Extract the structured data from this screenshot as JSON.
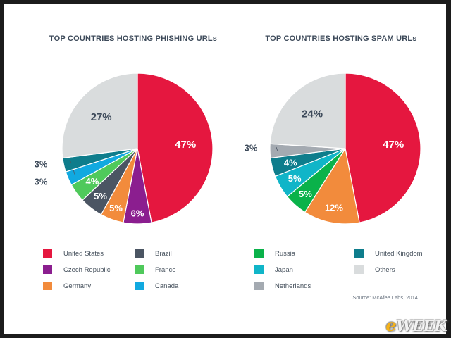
{
  "source_note": "Source: McAfee Labs, 2014.",
  "logo": {
    "prefix": "e",
    "suffix": "WEEK"
  },
  "legend_left": [
    {
      "label": "United States",
      "color": "#e5173f"
    },
    {
      "label": "Brazil",
      "color": "#4b5563"
    },
    {
      "label": "Czech Republic",
      "color": "#8b1e8f"
    },
    {
      "label": "France",
      "color": "#4fc95b"
    },
    {
      "label": "Germany",
      "color": "#f28b3c"
    },
    {
      "label": "Canada",
      "color": "#11a9e0"
    }
  ],
  "legend_right": [
    {
      "label": "Russia",
      "color": "#0ab24a"
    },
    {
      "label": "United Kingdom",
      "color": "#0e7d8c"
    },
    {
      "label": "Japan",
      "color": "#10b5c8"
    },
    {
      "label": "Others",
      "color": "#d9dcdd"
    },
    {
      "label": "Netherlands",
      "color": "#a4aab1"
    }
  ],
  "chart_data": [
    {
      "type": "pie",
      "title": "TOP COUNTRIES HOSTING PHISHING URLs",
      "slices": [
        {
          "label": "United States",
          "value": 47,
          "display": "47%",
          "color": "#e5173f"
        },
        {
          "label": "Czech Republic",
          "value": 6,
          "display": "6%",
          "color": "#8b1e8f"
        },
        {
          "label": "Germany",
          "value": 5,
          "display": "5%",
          "color": "#f28b3c"
        },
        {
          "label": "Brazil",
          "value": 5,
          "display": "5%",
          "color": "#4b5563"
        },
        {
          "label": "France",
          "value": 4,
          "display": "4%",
          "color": "#4fc95b"
        },
        {
          "label": "Canada",
          "value": 3,
          "display": "3%",
          "color": "#11a9e0"
        },
        {
          "label": "United Kingdom",
          "value": 3,
          "display": "3%",
          "color": "#0e7d8c"
        },
        {
          "label": "Others",
          "value": 27,
          "display": "27%",
          "color": "#d9dcdd"
        }
      ]
    },
    {
      "type": "pie",
      "title": "TOP COUNTRIES HOSTING SPAM URLs",
      "slices": [
        {
          "label": "United States",
          "value": 47,
          "display": "47%",
          "color": "#e5173f"
        },
        {
          "label": "Germany",
          "value": 12,
          "display": "12%",
          "color": "#f28b3c"
        },
        {
          "label": "Russia",
          "value": 5,
          "display": "5%",
          "color": "#0ab24a"
        },
        {
          "label": "Japan",
          "value": 5,
          "display": "5%",
          "color": "#10b5c8"
        },
        {
          "label": "United Kingdom",
          "value": 4,
          "display": "4%",
          "color": "#0e7d8c"
        },
        {
          "label": "Netherlands",
          "value": 3,
          "display": "3%",
          "color": "#a4aab1"
        },
        {
          "label": "Others",
          "value": 24,
          "display": "24%",
          "color": "#d9dcdd"
        }
      ]
    }
  ]
}
